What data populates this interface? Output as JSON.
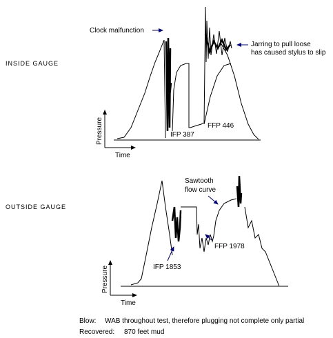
{
  "panels": [
    {
      "gauge_label": "INSIDE GAUGE",
      "y_axis_label": "Pressure",
      "x_axis_label": "Time",
      "annotations": [
        "Clock malfunction",
        "Jarring to pull loose",
        "has caused stylus to slip",
        "IFP 387",
        "FFP 446"
      ]
    },
    {
      "gauge_label": "OUTSIDE GAUGE",
      "y_axis_label": "Pressure",
      "x_axis_label": "Time",
      "annotations": [
        "Sawtooth",
        "flow curve",
        "IFP 1853",
        "FFP 1978"
      ]
    }
  ],
  "notes": [
    {
      "label": "Blow:",
      "text": "WAB throughout test, therefore plugging not complete only partial"
    },
    {
      "label": "Recovered:",
      "text": "870 feet mud"
    }
  ]
}
